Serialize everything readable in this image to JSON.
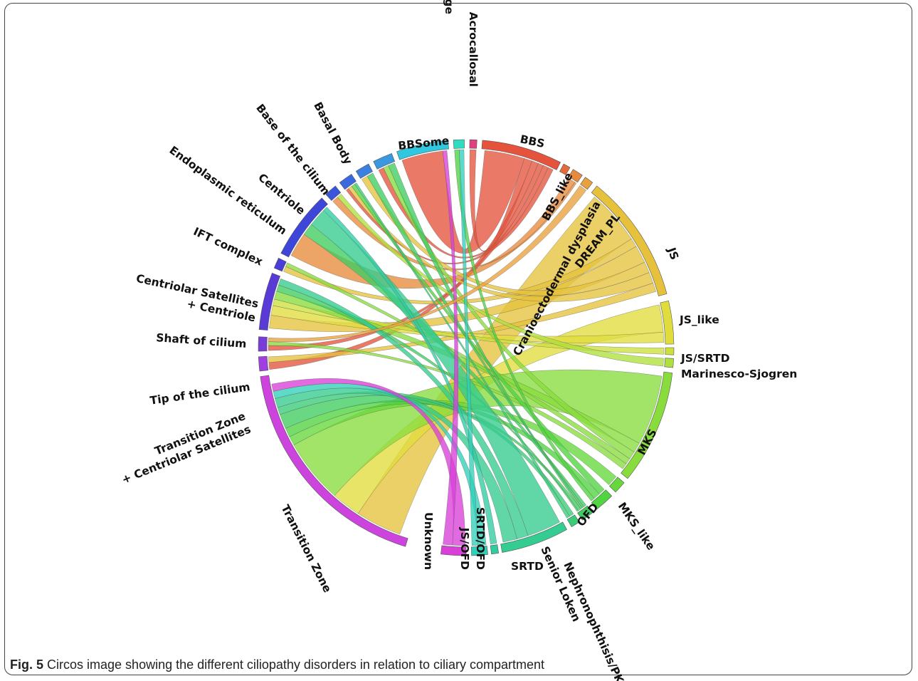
{
  "figure": {
    "caption_label": "Fig. 5",
    "caption_text": "Circos image showing the different ciliopathy disorders in relation to ciliary compartment"
  },
  "diagram": {
    "type": "circos",
    "segments": [
      {
        "id": "tz",
        "label": "Transition Zone",
        "color": "#cc44dd"
      },
      {
        "id": "tzcs",
        "label": "Transition Zone\n+ Centriolar Satellites",
        "color": "#a03ee0"
      },
      {
        "id": "tip",
        "label": "Tip of the cilium",
        "color": "#7a3cd8"
      },
      {
        "id": "shaft",
        "label": "Shaft of cilium",
        "color": "#5a3ad6"
      },
      {
        "id": "cscen",
        "label": "Centriolar Satellites\n+ Centriole",
        "color": "#4a3ed8"
      },
      {
        "id": "ift",
        "label": "IFT complex",
        "color": "#3d46d8"
      },
      {
        "id": "er",
        "label": "Endoplasmic reticulum",
        "color": "#3a55dc"
      },
      {
        "id": "cen",
        "label": "Centriole",
        "color": "#3a68de"
      },
      {
        "id": "base",
        "label": "Base of the cilium",
        "color": "#3a80e0"
      },
      {
        "id": "bb",
        "label": "Basal Body",
        "color": "#3a98e0"
      },
      {
        "id": "bbsome",
        "label": "BBSome",
        "color": "#30c8e0"
      },
      {
        "id": "capp",
        "label": "Centriolar Appendage",
        "color": "#30dcc0"
      },
      {
        "id": "acro",
        "label": "Acrocallosal",
        "color": "#e04080"
      },
      {
        "id": "bbs",
        "label": "BBS",
        "color": "#e5533c"
      },
      {
        "id": "bbsl",
        "label": "BBS_like",
        "color": "#e56a3a"
      },
      {
        "id": "cranio",
        "label": "Cranioectodermal dysplasia",
        "color": "#e88a3c"
      },
      {
        "id": "dream",
        "label": "DREAM_PL",
        "color": "#eaa03c"
      },
      {
        "id": "js",
        "label": "JS",
        "color": "#e6c23c"
      },
      {
        "id": "jsl",
        "label": "JS_like",
        "color": "#e0dc3c"
      },
      {
        "id": "jssrtd",
        "label": "JS/SRTD",
        "color": "#cce03c"
      },
      {
        "id": "marin",
        "label": "Marinesco-Sjogren",
        "color": "#b0e03c"
      },
      {
        "id": "mks",
        "label": "MKS",
        "color": "#88dc3c"
      },
      {
        "id": "mksl",
        "label": "MKS_like",
        "color": "#66d83c"
      },
      {
        "id": "ofd",
        "label": "OFD",
        "color": "#50d440"
      },
      {
        "id": "nephro",
        "label": "Nephronophthisis/PK",
        "color": "#40cc60"
      },
      {
        "id": "senior",
        "label": "Senior Loken",
        "color": "#38cc78"
      },
      {
        "id": "srtd",
        "label": "SRTD",
        "color": "#34cc90"
      },
      {
        "id": "srtdofd",
        "label": "SRTD/OFD",
        "color": "#30cca0"
      },
      {
        "id": "jsofd",
        "label": "JS/OFD",
        "color": "#30d0b8"
      },
      {
        "id": "unknown",
        "label": "Unknown",
        "color": "#d840d8"
      }
    ],
    "links": [
      {
        "from": "bbs",
        "to": "bbsome",
        "weight": 3
      },
      {
        "from": "bbs",
        "to": "acro",
        "weight": 0.6
      },
      {
        "from": "bbs",
        "to": "tzcs",
        "weight": 0.5
      },
      {
        "from": "bbs",
        "to": "tip",
        "weight": 0.4
      },
      {
        "from": "bbs",
        "to": "bb",
        "weight": 0.4
      },
      {
        "from": "bbs",
        "to": "cen",
        "weight": 0.4
      },
      {
        "from": "cranio",
        "to": "ift",
        "weight": 1.6
      },
      {
        "from": "cranio",
        "to": "er",
        "weight": 0.4
      },
      {
        "from": "js",
        "to": "tz",
        "weight": 2.5
      },
      {
        "from": "js",
        "to": "cscen",
        "weight": 0.4
      },
      {
        "from": "js",
        "to": "shaft",
        "weight": 0.8
      },
      {
        "from": "js",
        "to": "base",
        "weight": 0.5
      },
      {
        "from": "js",
        "to": "cen",
        "weight": 0.5
      },
      {
        "from": "js",
        "to": "tzcs",
        "weight": 0.4
      },
      {
        "from": "jsl",
        "to": "tz",
        "weight": 1.6
      },
      {
        "from": "jsl",
        "to": "shaft",
        "weight": 0.6
      },
      {
        "from": "jssrtd",
        "to": "shaft",
        "weight": 0.4
      },
      {
        "from": "marin",
        "to": "er",
        "weight": 0.3
      },
      {
        "from": "mks",
        "to": "tz",
        "weight": 3.5
      },
      {
        "from": "mks",
        "to": "shaft",
        "weight": 0.5
      },
      {
        "from": "mks",
        "to": "bb",
        "weight": 0.4
      },
      {
        "from": "mks",
        "to": "cscen",
        "weight": 0.3
      },
      {
        "from": "mks",
        "to": "tip",
        "weight": 0.3
      },
      {
        "from": "mksl",
        "to": "tz",
        "weight": 0.5
      },
      {
        "from": "ofd",
        "to": "cen",
        "weight": 0.5
      },
      {
        "from": "ofd",
        "to": "tz",
        "weight": 0.5
      },
      {
        "from": "ofd",
        "to": "capp",
        "weight": 0.3
      },
      {
        "from": "nephro",
        "to": "ift",
        "weight": 0.8
      },
      {
        "from": "nephro",
        "to": "base",
        "weight": 0.5
      },
      {
        "from": "nephro",
        "to": "bb",
        "weight": 0.5
      },
      {
        "from": "nephro",
        "to": "tz",
        "weight": 0.8
      },
      {
        "from": "nephro",
        "to": "shaft",
        "weight": 0.4
      },
      {
        "from": "senior",
        "to": "tz",
        "weight": 0.4
      },
      {
        "from": "senior",
        "to": "cen",
        "weight": 0.3
      },
      {
        "from": "srtd",
        "to": "ift",
        "weight": 1.2
      },
      {
        "from": "srtd",
        "to": "shaft",
        "weight": 0.4
      },
      {
        "from": "srtd",
        "to": "tz",
        "weight": 0.5
      },
      {
        "from": "srtdofd",
        "to": "ift",
        "weight": 0.3
      },
      {
        "from": "jsofd",
        "to": "tz",
        "weight": 0.4
      },
      {
        "from": "jsofd",
        "to": "capp",
        "weight": 0.3
      },
      {
        "from": "unknown",
        "to": "tz",
        "weight": 0.4
      },
      {
        "from": "unknown",
        "to": "bbsome",
        "weight": 0.3
      },
      {
        "from": "dream",
        "to": "tip",
        "weight": 0.3
      }
    ]
  }
}
